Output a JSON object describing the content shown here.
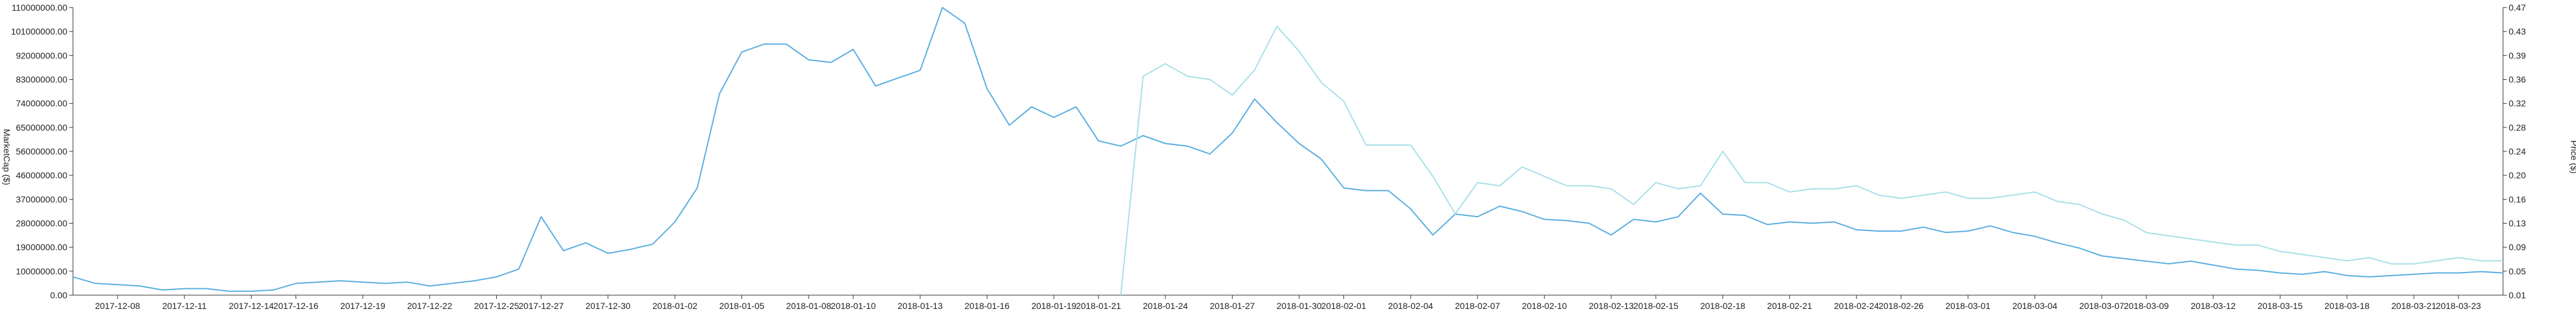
{
  "chart_data": {
    "type": "line",
    "title": "",
    "xlabel": "",
    "ylabel_left": "MarketCap ($)",
    "ylabel_right": "Price ($)",
    "grid": false,
    "legend": "none",
    "x_ticks": [
      "2017-12-08",
      "2017-12-11",
      "2017-12-14",
      "2017-12-16",
      "2017-12-19",
      "2017-12-22",
      "2017-12-25",
      "2017-12-27",
      "2017-12-30",
      "2018-01-02",
      "2018-01-05",
      "2018-01-08",
      "2018-01-10",
      "2018-01-13",
      "2018-01-16",
      "2018-01-19",
      "2018-01-21",
      "2018-01-24",
      "2018-01-27",
      "2018-01-30",
      "2018-02-01",
      "2018-02-04",
      "2018-02-07",
      "2018-02-10",
      "2018-02-13",
      "2018-02-15",
      "2018-02-18",
      "2018-02-21",
      "2018-02-24",
      "2018-02-26",
      "2018-03-01",
      "2018-03-04",
      "2018-03-07",
      "2018-03-09",
      "2018-03-12",
      "2018-03-15",
      "2018-03-18",
      "2018-03-21",
      "2018-03-23"
    ],
    "y_left_ticks": [
      "0.00",
      "10000000.00",
      "19000000.00",
      "28000000.00",
      "37000000.00",
      "46000000.00",
      "56000000.00",
      "65000000.00",
      "74000000.00",
      "83000000.00",
      "92000000.00",
      "101000000.00",
      "110000000.00"
    ],
    "y_left_range": [
      0,
      110000000
    ],
    "y_right_ticks": [
      "0.01",
      "0.05",
      "0.09",
      "0.13",
      "0.16",
      "0.20",
      "0.24",
      "0.28",
      "0.32",
      "0.36",
      "0.39",
      "0.43",
      "0.47"
    ],
    "y_right_range": [
      0.01,
      0.47
    ],
    "x_range": [
      "2017-12-06",
      "2018-03-25"
    ],
    "series": [
      {
        "axis": "left",
        "color": "#5aaee0",
        "x": [
          "2017-12-06",
          "2017-12-07",
          "2017-12-08",
          "2017-12-09",
          "2017-12-10",
          "2017-12-11",
          "2017-12-12",
          "2017-12-13",
          "2017-12-14",
          "2017-12-15",
          "2017-12-16",
          "2017-12-17",
          "2017-12-18",
          "2017-12-19",
          "2017-12-20",
          "2017-12-21",
          "2017-12-22",
          "2017-12-23",
          "2017-12-24",
          "2017-12-25",
          "2017-12-26",
          "2017-12-27",
          "2017-12-28",
          "2017-12-29",
          "2017-12-30",
          "2017-12-31",
          "2018-01-01",
          "2018-01-02",
          "2018-01-03",
          "2018-01-04",
          "2018-01-05",
          "2018-01-06",
          "2018-01-07",
          "2018-01-08",
          "2018-01-09",
          "2018-01-10",
          "2018-01-11",
          "2018-01-12",
          "2018-01-13",
          "2018-01-14",
          "2018-01-15",
          "2018-01-16",
          "2018-01-17",
          "2018-01-18",
          "2018-01-19",
          "2018-01-20",
          "2018-01-21",
          "2018-01-22",
          "2018-01-23",
          "2018-01-24",
          "2018-01-25",
          "2018-01-26",
          "2018-01-27",
          "2018-01-28",
          "2018-01-29",
          "2018-01-30",
          "2018-01-31",
          "2018-02-01",
          "2018-02-02",
          "2018-02-03",
          "2018-02-04",
          "2018-02-05",
          "2018-02-06",
          "2018-02-07",
          "2018-02-08",
          "2018-02-09",
          "2018-02-10",
          "2018-02-11",
          "2018-02-12",
          "2018-02-13",
          "2018-02-14",
          "2018-02-15",
          "2018-02-16",
          "2018-02-17",
          "2018-02-18",
          "2018-02-19",
          "2018-02-20",
          "2018-02-21",
          "2018-02-22",
          "2018-02-23",
          "2018-02-24",
          "2018-02-25",
          "2018-02-26",
          "2018-02-27",
          "2018-02-28",
          "2018-03-01",
          "2018-03-02",
          "2018-03-03",
          "2018-03-04",
          "2018-03-05",
          "2018-03-06",
          "2018-03-07",
          "2018-03-08",
          "2018-03-09",
          "2018-03-10",
          "2018-03-11",
          "2018-03-12",
          "2018-03-13",
          "2018-03-14",
          "2018-03-15",
          "2018-03-16",
          "2018-03-17",
          "2018-03-18",
          "2018-03-19",
          "2018-03-20",
          "2018-03-21",
          "2018-03-22",
          "2018-03-23",
          "2018-03-24",
          "2018-03-25"
        ],
        "y": [
          7000000,
          4500000,
          4000000,
          3500000,
          2000000,
          2500000,
          2500000,
          1500000,
          1500000,
          2000000,
          4500000,
          5000000,
          5500000,
          5000000,
          4500000,
          5000000,
          3500000,
          4500000,
          5500000,
          7000000,
          10000000,
          30000000,
          17000000,
          20000000,
          16000000,
          17500000,
          19500000,
          28000000,
          41000000,
          77000000,
          93000000,
          96000000,
          96000000,
          90000000,
          89000000,
          94000000,
          80000000,
          83000000,
          86000000,
          110000000,
          104000000,
          79000000,
          65000000,
          72000000,
          68000000,
          72000000,
          59000000,
          57000000,
          61000000,
          58000000,
          57000000,
          54000000,
          62000000,
          75000000,
          66000000,
          58000000,
          52000000,
          41000000,
          40000000,
          40000000,
          33000000,
          23000000,
          31000000,
          30000000,
          34000000,
          32000000,
          29000000,
          28500000,
          27500000,
          23000000,
          29000000,
          28000000,
          30000000,
          39000000,
          31000000,
          30500000,
          27000000,
          28000000,
          27500000,
          28000000,
          25000000,
          24500000,
          24500000,
          26000000,
          24000000,
          24500000,
          26500000,
          24000000,
          22500000,
          20000000,
          18000000,
          15000000,
          14000000,
          13000000,
          12000000,
          13000000,
          11500000,
          10000000,
          9500000,
          8500000,
          8000000,
          9000000,
          7500000,
          7000000,
          7500000,
          8000000,
          8500000,
          8500000,
          9000000,
          8500000
        ]
      },
      {
        "axis": "right",
        "color": "#a8e0e8",
        "x": [
          "2018-01-22",
          "2018-01-23",
          "2018-01-24",
          "2018-01-25",
          "2018-01-26",
          "2018-01-27",
          "2018-01-28",
          "2018-01-29",
          "2018-01-30",
          "2018-01-31",
          "2018-02-01",
          "2018-02-02",
          "2018-02-03",
          "2018-02-04",
          "2018-02-05",
          "2018-02-06",
          "2018-02-07",
          "2018-02-08",
          "2018-02-09",
          "2018-02-10",
          "2018-02-11",
          "2018-02-12",
          "2018-02-13",
          "2018-02-14",
          "2018-02-15",
          "2018-02-16",
          "2018-02-17",
          "2018-02-18",
          "2018-02-19",
          "2018-02-20",
          "2018-02-21",
          "2018-02-22",
          "2018-02-23",
          "2018-02-24",
          "2018-02-25",
          "2018-02-26",
          "2018-02-27",
          "2018-02-28",
          "2018-03-01",
          "2018-03-02",
          "2018-03-03",
          "2018-03-04",
          "2018-03-05",
          "2018-03-06",
          "2018-03-07",
          "2018-03-08",
          "2018-03-09",
          "2018-03-10",
          "2018-03-11",
          "2018-03-12",
          "2018-03-13",
          "2018-03-14",
          "2018-03-15",
          "2018-03-16",
          "2018-03-17",
          "2018-03-18",
          "2018-03-19",
          "2018-03-20",
          "2018-03-21",
          "2018-03-22",
          "2018-03-23",
          "2018-03-24",
          "2018-03-25"
        ],
        "y": [
          0.01,
          0.36,
          0.38,
          0.36,
          0.355,
          0.33,
          0.37,
          0.44,
          0.4,
          0.35,
          0.32,
          0.25,
          0.25,
          0.25,
          0.2,
          0.14,
          0.19,
          0.185,
          0.215,
          0.2,
          0.185,
          0.185,
          0.18,
          0.155,
          0.19,
          0.18,
          0.185,
          0.24,
          0.19,
          0.19,
          0.175,
          0.18,
          0.18,
          0.185,
          0.17,
          0.165,
          0.17,
          0.175,
          0.165,
          0.165,
          0.17,
          0.175,
          0.16,
          0.155,
          0.14,
          0.13,
          0.11,
          0.105,
          0.1,
          0.095,
          0.09,
          0.09,
          0.08,
          0.075,
          0.07,
          0.065,
          0.07,
          0.06,
          0.06,
          0.065,
          0.07,
          0.065,
          0.065
        ]
      }
    ]
  }
}
